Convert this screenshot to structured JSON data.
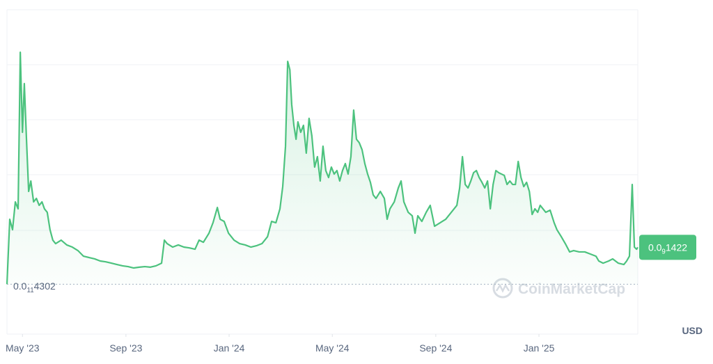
{
  "chart_data": {
    "type": "line",
    "currency": "USD",
    "watermark": "CoinMarketCap",
    "xlim": [
      2023.283,
      2025.319
    ],
    "ylim": [
      0,
      1.03e-09
    ],
    "xticks": [
      {
        "value": 2023.333,
        "label": "May '23"
      },
      {
        "value": 2023.667,
        "label": "Sep '23"
      },
      {
        "value": 2024,
        "label": "Jan '24"
      },
      {
        "value": 2024.333,
        "label": "May '24"
      },
      {
        "value": 2024.667,
        "label": "Sep '24"
      },
      {
        "value": 2025,
        "label": "Jan '25"
      }
    ],
    "min_marker": {
      "value": 4.302e-12,
      "label": {
        "lead": "0.0",
        "zeros": "11",
        "digits": "4302"
      }
    },
    "last_marker": {
      "value": 1.422e-10,
      "label": {
        "lead": "0.0",
        "zeros": "9",
        "digits": "1422"
      }
    },
    "series": [
      {
        "color": "#4cc27e",
        "x": [
          2023.283,
          2023.292,
          2023.301,
          2023.31,
          2023.319,
          2023.326,
          2023.333,
          2023.339,
          2023.346,
          2023.353,
          2023.36,
          2023.369,
          2023.378,
          2023.387,
          2023.396,
          2023.404,
          2023.413,
          2023.422,
          2023.431,
          2023.44,
          2023.458,
          2023.476,
          2023.494,
          2023.512,
          2023.53,
          2023.548,
          2023.566,
          2023.584,
          2023.602,
          2023.62,
          2023.638,
          2023.656,
          2023.674,
          2023.692,
          2023.71,
          2023.728,
          2023.746,
          2023.764,
          2023.782,
          2023.791,
          2023.8,
          2023.818,
          2023.836,
          2023.854,
          2023.872,
          2023.89,
          2023.903,
          2023.917,
          2023.935,
          2023.948,
          2023.962,
          2023.971,
          2023.984,
          2023.998,
          2024.016,
          2024.034,
          2024.052,
          2024.07,
          2024.088,
          2024.106,
          2024.124,
          2024.137,
          2024.151,
          2024.164,
          2024.173,
          2024.182,
          2024.189,
          2024.196,
          2024.202,
          2024.209,
          2024.216,
          2024.222,
          2024.231,
          2024.24,
          2024.249,
          2024.258,
          2024.267,
          2024.276,
          2024.285,
          2024.294,
          2024.303,
          2024.312,
          2024.321,
          2024.33,
          2024.339,
          2024.348,
          2024.357,
          2024.366,
          2024.375,
          2024.384,
          2024.393,
          2024.402,
          2024.411,
          2024.42,
          2024.429,
          2024.438,
          2024.447,
          2024.456,
          2024.465,
          2024.474,
          2024.488,
          2024.501,
          2024.51,
          2024.519,
          2024.533,
          2024.546,
          2024.555,
          2024.564,
          2024.578,
          2024.591,
          2024.6,
          2024.609,
          2024.622,
          2024.636,
          2024.649,
          2024.663,
          2024.681,
          2024.699,
          2024.717,
          2024.735,
          2024.744,
          2024.753,
          2024.762,
          2024.771,
          2024.78,
          2024.789,
          2024.798,
          2024.807,
          2024.816,
          2024.825,
          2024.834,
          2024.843,
          2024.852,
          2024.861,
          2024.87,
          2024.879,
          2024.888,
          2024.897,
          2024.906,
          2024.915,
          2024.924,
          2024.933,
          2024.942,
          2024.951,
          2024.96,
          2024.969,
          2024.978,
          2024.987,
          2024.996,
          2025.004,
          2025.013,
          2025.022,
          2025.036,
          2025.049,
          2025.058,
          2025.072,
          2025.085,
          2025.099,
          2025.112,
          2025.13,
          2025.148,
          2025.166,
          2025.184,
          2025.193,
          2025.207,
          2025.225,
          2025.238,
          2025.256,
          2025.274,
          2025.283,
          2025.292,
          2025.301,
          2025.308,
          2025.315,
          2025.319
        ],
        "values": [
          4.302e-12,
          2.47e-10,
          2.08e-10,
          3.12e-10,
          2.86e-10,
          8.71e-10,
          5.72e-10,
          7.54e-10,
          5.46e-10,
          3.51e-10,
          3.9e-10,
          3.12e-10,
          3.25e-10,
          2.99e-10,
          3.12e-10,
          2.86e-10,
          2.73e-10,
          2.08e-10,
          1.69e-10,
          1.56e-10,
          1.69e-10,
          1.51e-10,
          1.43e-10,
          1.3e-10,
          1.09e-10,
          1.04e-10,
          9.9e-11,
          9.1e-11,
          8.8e-11,
          8.3e-11,
          7.8e-11,
          7.3e-11,
          7e-11,
          6.5e-11,
          6.8e-11,
          7e-11,
          6.8e-11,
          7.3e-11,
          8.3e-11,
          1.69e-10,
          1.56e-10,
          1.43e-10,
          1.51e-10,
          1.43e-10,
          1.4e-10,
          1.35e-10,
          1.69e-10,
          1.61e-10,
          1.95e-10,
          2.34e-10,
          2.91e-10,
          2.47e-10,
          2.39e-10,
          1.95e-10,
          1.69e-10,
          1.56e-10,
          1.51e-10,
          1.43e-10,
          1.48e-10,
          1.56e-10,
          1.82e-10,
          2.39e-10,
          2.34e-10,
          2.86e-10,
          3.69e-10,
          5.2e-10,
          8.37e-10,
          8.06e-10,
          6.76e-10,
          5.98e-10,
          5.46e-10,
          6.11e-10,
          5.72e-10,
          5.98e-10,
          4.94e-10,
          6.24e-10,
          5.59e-10,
          4.42e-10,
          4.81e-10,
          3.9e-10,
          5.2e-10,
          4.29e-10,
          4.03e-10,
          4.42e-10,
          4.16e-10,
          4.29e-10,
          3.9e-10,
          4.29e-10,
          4.55e-10,
          4.16e-10,
          4.81e-10,
          6.55e-10,
          5.46e-10,
          5.33e-10,
          5.07e-10,
          4.55e-10,
          4.16e-10,
          3.85e-10,
          3.38e-10,
          3.25e-10,
          3.51e-10,
          3.25e-10,
          2.47e-10,
          2.86e-10,
          3.12e-10,
          3.64e-10,
          3.9e-10,
          3.12e-10,
          2.73e-10,
          2.6e-10,
          1.95e-10,
          2.6e-10,
          2.39e-10,
          2.73e-10,
          2.99e-10,
          2.21e-10,
          2.34e-10,
          2.47e-10,
          2.73e-10,
          2.99e-10,
          3.64e-10,
          4.81e-10,
          3.77e-10,
          3.64e-10,
          3.9e-10,
          4.21e-10,
          4.29e-10,
          4.03e-10,
          3.85e-10,
          3.64e-10,
          3.9e-10,
          2.86e-10,
          3.77e-10,
          4.29e-10,
          4.21e-10,
          4.16e-10,
          4.11e-10,
          3.77e-10,
          3.9e-10,
          3.77e-10,
          3.77e-10,
          4.63e-10,
          4.03e-10,
          3.69e-10,
          3.85e-10,
          3.51e-10,
          2.65e-10,
          2.86e-10,
          2.73e-10,
          2.99e-10,
          2.86e-10,
          2.73e-10,
          2.81e-10,
          2.34e-10,
          2.08e-10,
          1.82e-10,
          1.56e-10,
          1.25e-10,
          1.3e-10,
          1.25e-10,
          1.25e-10,
          1.17e-10,
          1.09e-10,
          9.1e-11,
          8.3e-11,
          9.1e-11,
          9.9e-11,
          8.3e-11,
          7.8e-11,
          9.1e-11,
          1.09e-10,
          3.77e-10,
          1.43e-10,
          1.35e-10,
          1.422e-10
        ]
      }
    ]
  }
}
